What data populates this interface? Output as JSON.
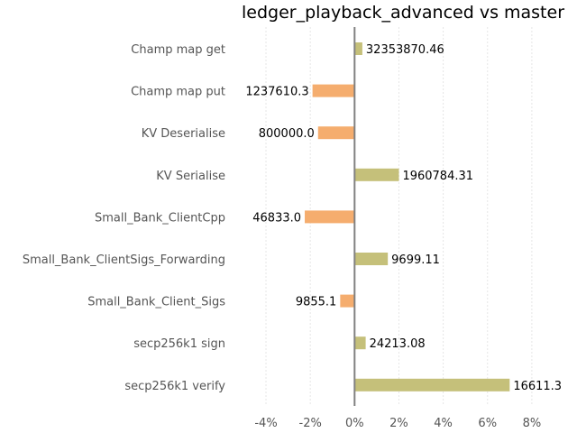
{
  "chart_data": {
    "type": "bar",
    "orientation": "horizontal",
    "title": "ledger_playback_advanced vs master",
    "xlabel": "",
    "ylabel": "",
    "x_ticks": [
      "-4%",
      "-2%",
      "0%",
      "2%",
      "4%",
      "6%",
      "8%"
    ],
    "x_tick_values": [
      -4,
      -2,
      0,
      2,
      4,
      6,
      8
    ],
    "xlim": [
      -5.1,
      8.9
    ],
    "grid": "vertical-dotted",
    "categories": [
      "Champ map get",
      "Champ map put",
      "KV Deserialise",
      "KV Serialise",
      "Small_Bank_ClientCpp",
      "Small_Bank_ClientSigs_Forwarding",
      "Small_Bank_Client_Sigs",
      "secp256k1 sign",
      "secp256k1 verify"
    ],
    "values": [
      0.35,
      -1.9,
      -1.65,
      2.0,
      -2.25,
      1.5,
      -0.65,
      0.5,
      7.0
    ],
    "data_labels": [
      "32353870.46",
      "1237610.3",
      "800000.0",
      "1960784.31",
      "46833.0",
      "9699.11",
      "9855.1",
      "24213.08",
      "16611.3"
    ],
    "colors": {
      "positive": "#c5c07a",
      "negative": "#f5ad6e",
      "zero_line": "#808080",
      "grid": "#e6e6e6"
    }
  }
}
